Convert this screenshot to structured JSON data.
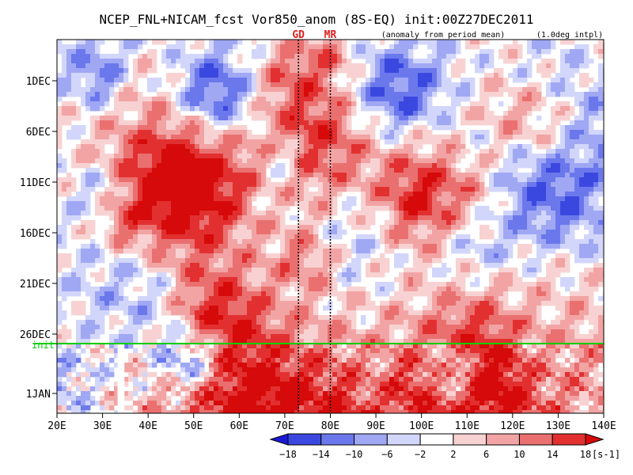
{
  "chart_data": {
    "type": "heatmap",
    "title": "NCEP_FNL+NICAM_fcst Vor850_anom (8S-EQ) init:00Z27DEC2011",
    "subtitle": "(anomaly from period mean)",
    "note": "(1.0deg intpl)",
    "xlim": [
      20,
      140
    ],
    "x_ticks": [
      "20E",
      "30E",
      "40E",
      "50E",
      "60E",
      "70E",
      "80E",
      "90E",
      "100E",
      "110E",
      "120E",
      "130E",
      "140E"
    ],
    "y_ticks": [
      "1DEC",
      "6DEC",
      "11DEC",
      "16DEC",
      "21DEC",
      "26DEC",
      "1JAN"
    ],
    "init_label": "init",
    "init_line_color": "#00cc00",
    "site_markers": [
      {
        "label": "GD",
        "x": 73
      },
      {
        "label": "MR",
        "x": 80
      }
    ],
    "colorbar": {
      "levels": [
        "−18",
        "−14",
        "−10",
        "−6",
        "−2",
        "2",
        "6",
        "10",
        "14",
        "18"
      ],
      "unit": "[s-1]",
      "colors": [
        "#1a1ad6",
        "#3b48e0",
        "#6b78ec",
        "#a0a8f4",
        "#d2d6fa",
        "#ffffff",
        "#f8d2d2",
        "#f2a4a4",
        "#ea7070",
        "#e23030",
        "#d60a0a"
      ]
    }
  }
}
